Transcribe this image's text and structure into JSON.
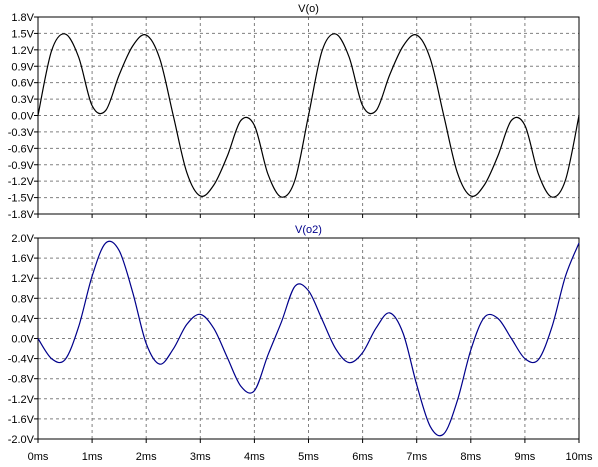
{
  "chart_data": [
    {
      "type": "line",
      "title": "V(o)",
      "title_color": "#000000",
      "ylim": [
        -1.8,
        1.8
      ],
      "yticks": [
        "1.8V",
        "1.5V",
        "1.2V",
        "0.9V",
        "0.6V",
        "0.3V",
        "0.0V",
        "-0.3V",
        "-0.6V",
        "-0.9V",
        "-1.2V",
        "-1.5V",
        "-1.8V"
      ],
      "xlim": [
        0,
        10
      ],
      "grid": true,
      "series": [
        {
          "name": "V(o)",
          "color": "#000000",
          "x": [
            0.0,
            0.25,
            0.5,
            0.75,
            1.0,
            1.25,
            1.5,
            1.75,
            2.0,
            2.25,
            2.5,
            2.75,
            3.0,
            3.25,
            3.5,
            3.75,
            4.0,
            4.25,
            4.5,
            4.75,
            5.0,
            5.25,
            5.5,
            5.75,
            6.0,
            6.25,
            6.5,
            6.75,
            7.0,
            7.25,
            7.5,
            7.75,
            8.0,
            8.25,
            8.5,
            8.75,
            9.0,
            9.25,
            9.5,
            9.75,
            10.0
          ],
          "values": [
            0.0,
            1.18,
            1.49,
            1.07,
            0.18,
            0.09,
            0.74,
            1.27,
            1.47,
            1.04,
            0.0,
            -1.04,
            -1.47,
            -1.27,
            -0.74,
            -0.09,
            -0.18,
            -1.07,
            -1.49,
            -1.18,
            0.0,
            1.18,
            1.49,
            1.07,
            0.18,
            0.09,
            0.74,
            1.27,
            1.47,
            1.04,
            0.0,
            -1.04,
            -1.47,
            -1.27,
            -0.74,
            -0.09,
            -0.18,
            -1.07,
            -1.49,
            -1.18,
            0.0
          ]
        }
      ]
    },
    {
      "type": "line",
      "title": "V(o2)",
      "title_color": "#00008b",
      "ylim": [
        -2.0,
        2.0
      ],
      "yticks": [
        "2.0V",
        "1.6V",
        "1.2V",
        "0.8V",
        "0.4V",
        "0.0V",
        "-0.4V",
        "-0.8V",
        "-1.2V",
        "-1.6V",
        "-2.0V"
      ],
      "xlim": [
        0,
        10
      ],
      "xticks": [
        "0ms",
        "1ms",
        "2ms",
        "3ms",
        "4ms",
        "5ms",
        "6ms",
        "7ms",
        "8ms",
        "9ms",
        "10ms"
      ],
      "grid": true,
      "series": [
        {
          "name": "V(o2)",
          "color": "#00008b",
          "x": [
            0.0,
            0.25,
            0.5,
            0.75,
            1.0,
            1.25,
            1.5,
            1.75,
            2.0,
            2.25,
            2.5,
            2.75,
            3.0,
            3.25,
            3.5,
            3.75,
            4.0,
            4.25,
            4.5,
            4.75,
            5.0,
            5.25,
            5.5,
            5.75,
            6.0,
            6.25,
            6.5,
            6.75,
            7.0,
            7.25,
            7.5,
            7.75,
            8.0,
            8.25,
            8.5,
            8.75,
            9.0,
            9.25,
            9.5,
            9.75,
            10.0
          ],
          "values": [
            0.0,
            -0.4,
            -0.42,
            0.23,
            1.24,
            1.9,
            1.75,
            0.92,
            -0.1,
            -0.51,
            -0.21,
            0.28,
            0.48,
            0.2,
            -0.38,
            -0.95,
            -1.04,
            -0.33,
            0.33,
            1.04,
            0.95,
            0.38,
            -0.2,
            -0.48,
            -0.28,
            0.21,
            0.51,
            0.1,
            -0.92,
            -1.75,
            -1.9,
            -1.24,
            -0.23,
            0.42,
            0.4,
            0.0,
            -0.4,
            -0.42,
            0.23,
            1.24,
            1.9
          ]
        }
      ]
    }
  ]
}
